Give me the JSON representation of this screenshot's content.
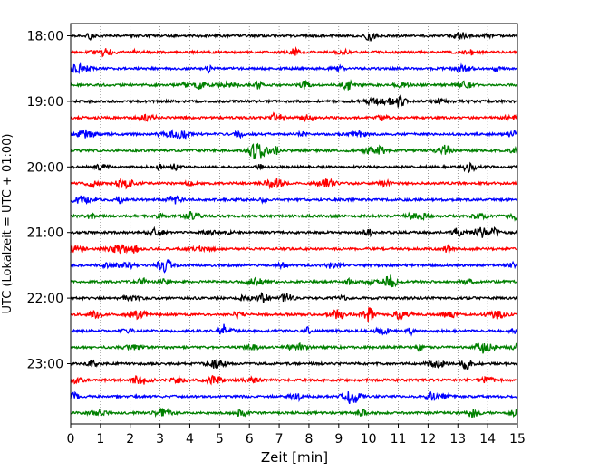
{
  "chart_data": {
    "type": "line",
    "xlabel": "Zeit  [min]",
    "ylabel": "UTC (Lokalzeit = UTC + 01:00)",
    "xlim": [
      0,
      15
    ],
    "x_ticks": [
      "0",
      "1",
      "2",
      "3",
      "4",
      "5",
      "6",
      "7",
      "8",
      "9",
      "10",
      "11",
      "12",
      "13",
      "14",
      "15"
    ],
    "y_ticks": [
      "18:00",
      "19:00",
      "20:00",
      "21:00",
      "22:00",
      "23:00"
    ],
    "grid": "vertical dotted at each minute",
    "row_interval_minutes": 15,
    "row_count": 24,
    "first_row": "18:00",
    "color_cycle": [
      "#000000",
      "#ff0000",
      "#0000ff",
      "#008000"
    ]
  }
}
